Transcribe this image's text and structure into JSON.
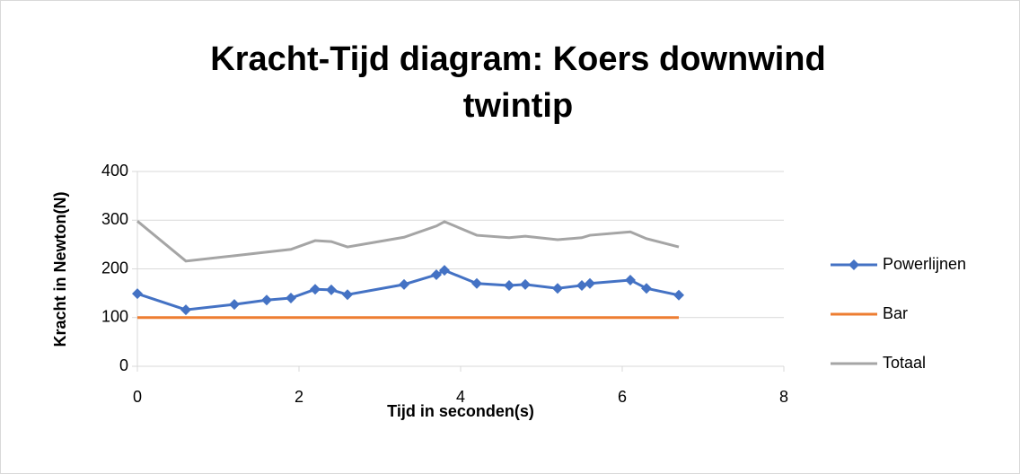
{
  "chart_data": {
    "type": "line",
    "title": "Kracht-Tijd diagram: Koers downwind twintip",
    "xlabel": "Tijd in seconden(s)",
    "ylabel": "Kracht in Newton(N)",
    "xlim": [
      0,
      8
    ],
    "xticks": [
      0,
      2,
      4,
      6,
      8
    ],
    "ylim": [
      0,
      400
    ],
    "yticks": [
      0,
      100,
      200,
      300,
      400
    ],
    "grid": true,
    "legend": "right",
    "series": [
      {
        "name": "Powerlijnen",
        "color": "#4472c4",
        "marker": "diamond",
        "x": [
          0,
          0.6,
          1.2,
          1.6,
          1.9,
          2.2,
          2.4,
          2.6,
          3.3,
          3.7,
          3.8,
          4.2,
          4.6,
          4.8,
          5.2,
          5.5,
          5.6,
          6.1,
          6.3,
          6.7
        ],
        "values": [
          149,
          116,
          127,
          136,
          140,
          158,
          157,
          147,
          168,
          188,
          197,
          170,
          166,
          168,
          160,
          166,
          170,
          177,
          160,
          146
        ]
      },
      {
        "name": "Bar",
        "color": "#ed7d31",
        "x": [
          0,
          6.7
        ],
        "values": [
          100,
          100
        ]
      },
      {
        "name": "Totaal",
        "color": "#a5a5a5",
        "x": [
          0,
          0.6,
          1.2,
          1.9,
          2.2,
          2.4,
          2.6,
          3.3,
          3.7,
          3.8,
          4.2,
          4.6,
          4.8,
          5.2,
          5.5,
          5.6,
          6.1,
          6.3,
          6.7
        ],
        "values": [
          298,
          216,
          227,
          240,
          258,
          256,
          245,
          265,
          288,
          297,
          269,
          264,
          267,
          260,
          264,
          269,
          276,
          262,
          245
        ]
      }
    ]
  }
}
